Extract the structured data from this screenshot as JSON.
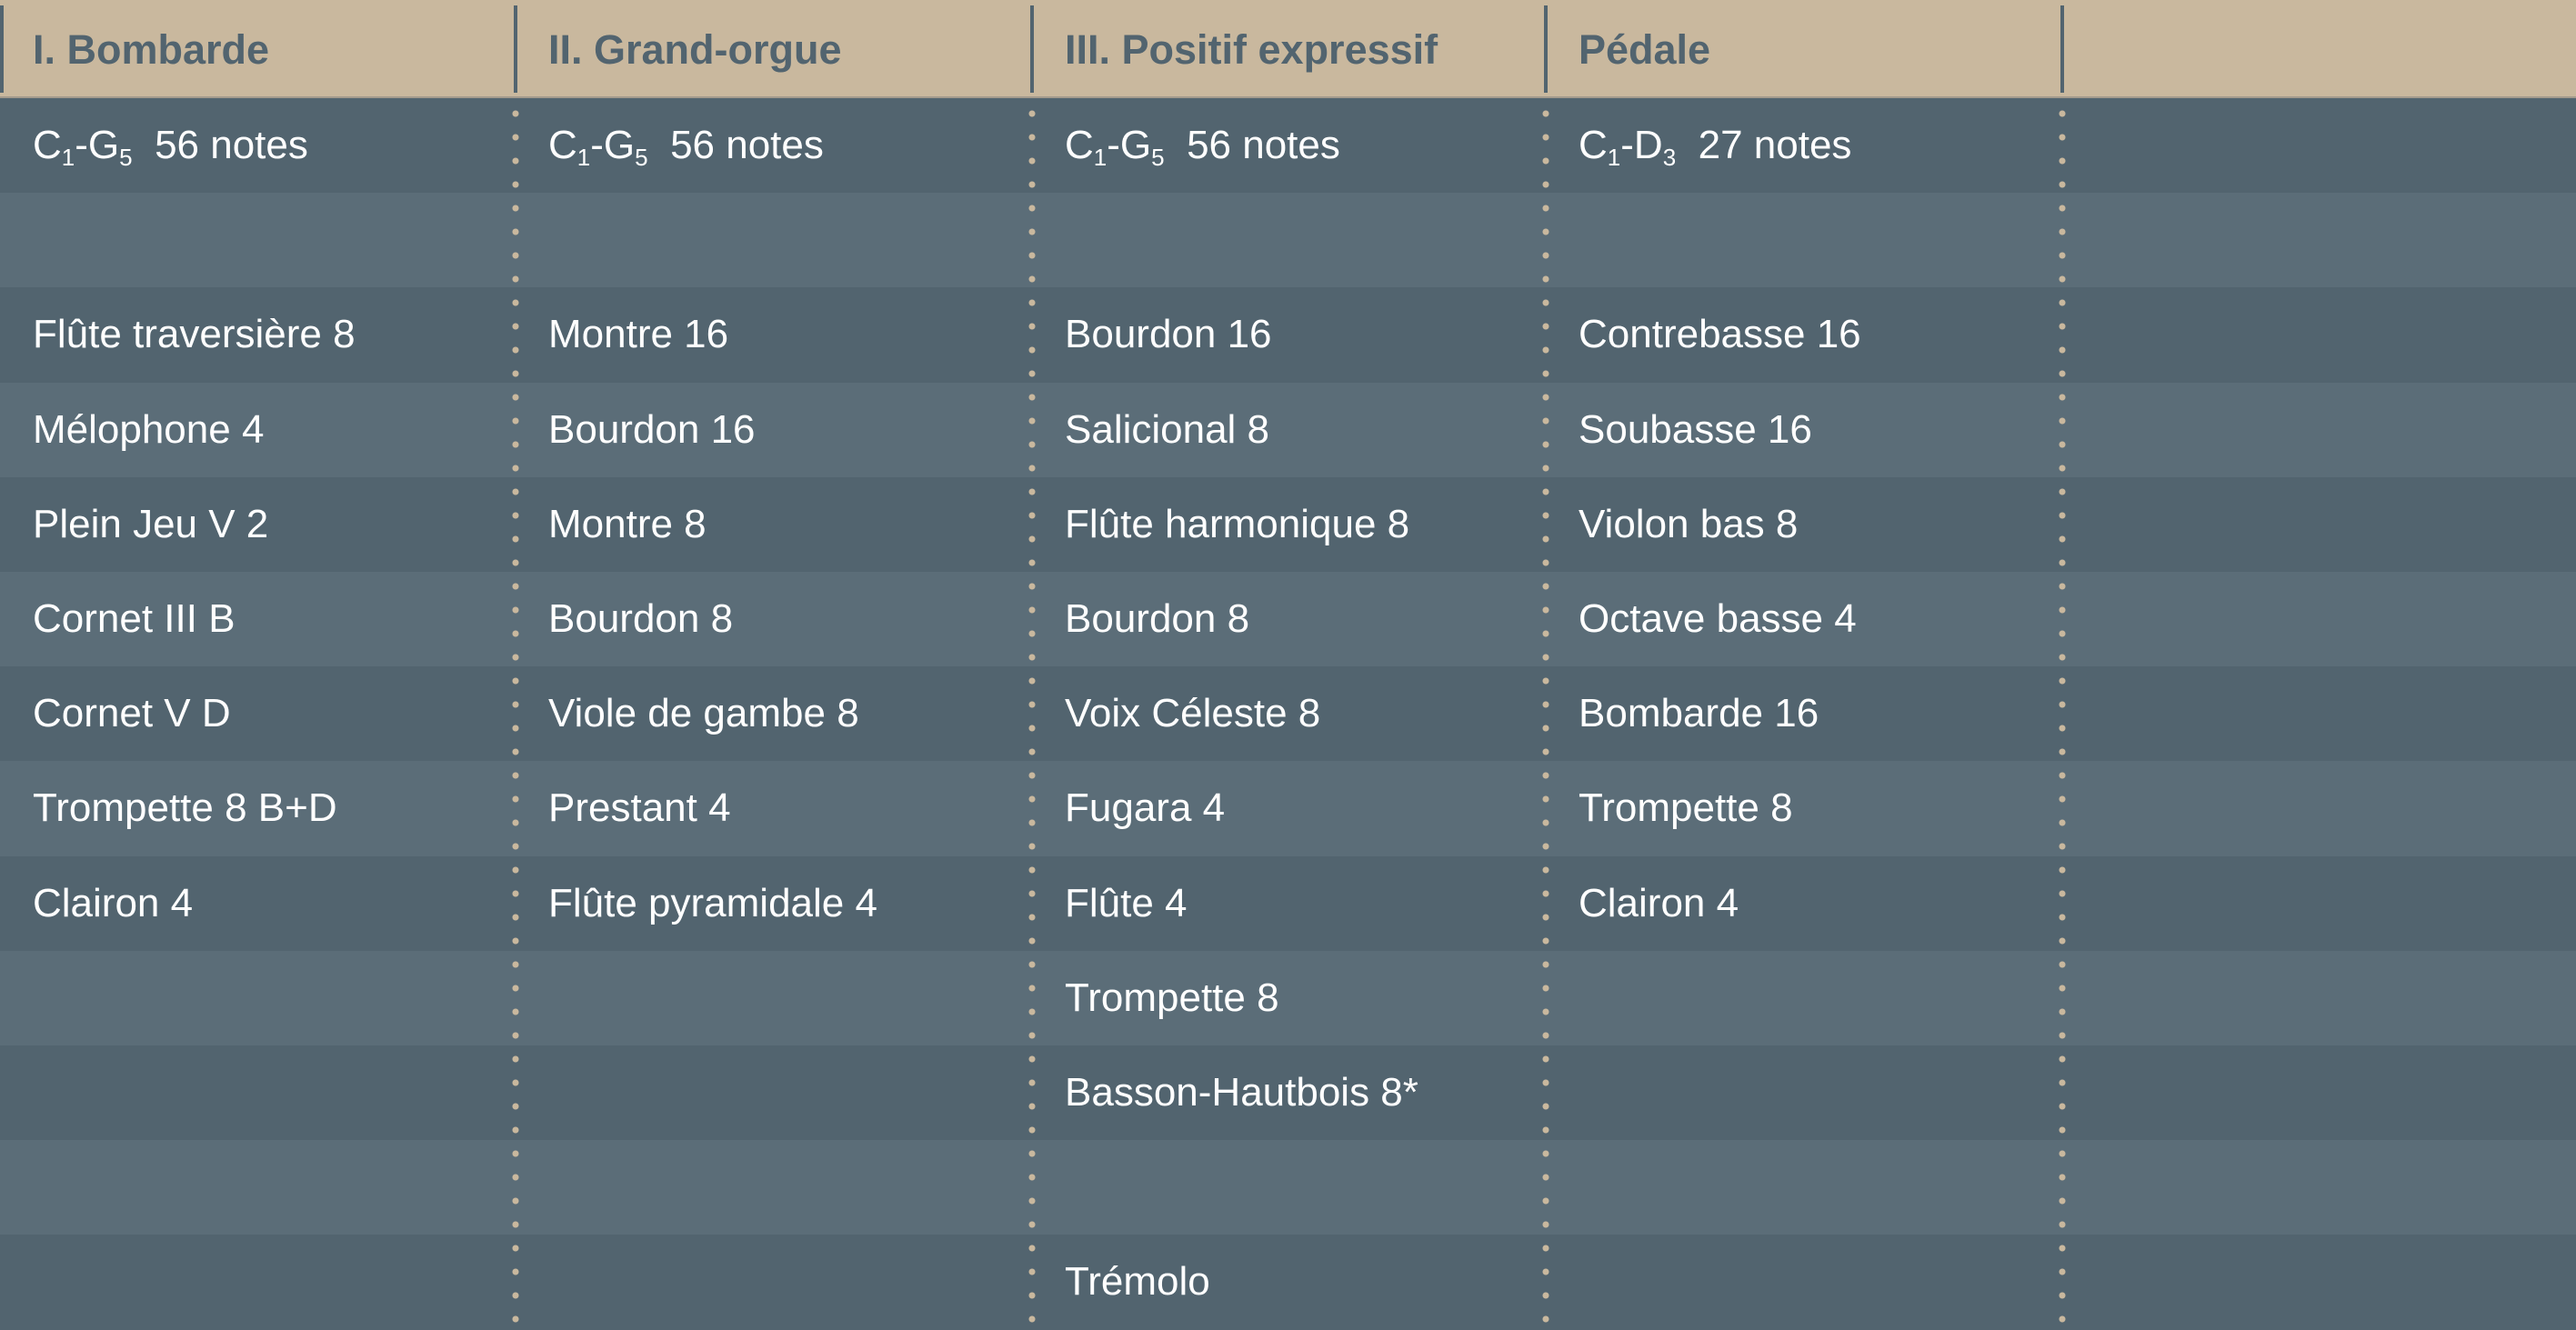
{
  "colors": {
    "header_bg": "#c9b89e",
    "header_text": "#52646f",
    "row_dark": "#52646f",
    "row_light": "#5b6d78",
    "text": "#ffffff",
    "divider": "#c9b89e"
  },
  "columns": [
    {
      "title": "I. Bombarde",
      "range": {
        "start": "C",
        "start_oct": "1",
        "end": "G",
        "end_oct": "5",
        "count": "56 notes"
      },
      "stops": [
        "",
        "Flûte traversière 8",
        "Mélophone 4",
        "Plein Jeu V 2",
        "Cornet III B",
        "Cornet V D",
        "Trompette 8 B+D",
        "Clairon 4",
        "",
        "",
        "",
        ""
      ]
    },
    {
      "title": "II. Grand-orgue",
      "range": {
        "start": "C",
        "start_oct": "1",
        "end": "G",
        "end_oct": "5",
        "count": "56 notes"
      },
      "stops": [
        "",
        "Montre 16",
        "Bourdon 16",
        "Montre 8",
        "Bourdon 8",
        "Viole de gambe 8",
        "Prestant 4",
        "Flûte pyramidale 4",
        "",
        "",
        "",
        ""
      ]
    },
    {
      "title": "III. Positif expressif",
      "range": {
        "start": "C",
        "start_oct": "1",
        "end": "G",
        "end_oct": "5",
        "count": "56 notes"
      },
      "stops": [
        "",
        "Bourdon 16",
        "Salicional 8",
        "Flûte harmonique 8",
        "Bourdon 8",
        "Voix Céleste 8",
        "Fugara 4",
        "Flûte 4",
        "Trompette 8",
        "Basson-Hautbois 8*",
        "",
        "Trémolo"
      ]
    },
    {
      "title": "Pédale",
      "range": {
        "start": "C",
        "start_oct": "1",
        "end": "D",
        "end_oct": "3",
        "count": "27 notes"
      },
      "stops": [
        "",
        "Contrebasse 16",
        "Soubasse 16",
        "Violon bas 8",
        "Octave basse 4",
        "Bombarde 16",
        "Trompette 8",
        "Clairon 4",
        "",
        "",
        "",
        ""
      ]
    },
    {
      "title": "",
      "range": null,
      "stops": [
        "",
        "",
        "",
        "",
        "",
        "",
        "",
        "",
        "",
        "",
        "",
        ""
      ]
    }
  ]
}
